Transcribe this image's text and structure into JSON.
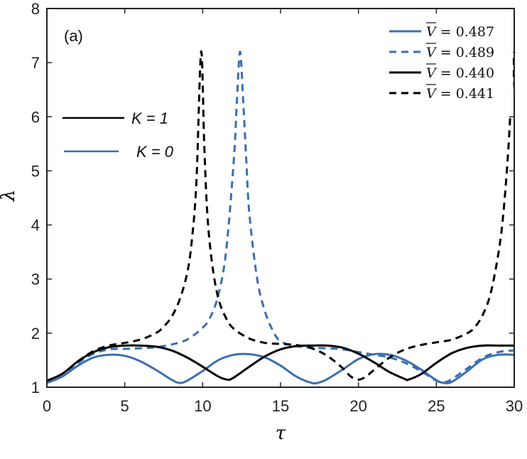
{
  "chart_data": {
    "type": "line",
    "panel_label": "(a)",
    "xlabel": "τ",
    "ylabel": "λ",
    "xlim": [
      0,
      30
    ],
    "ylim": [
      1,
      8
    ],
    "xticks": [
      "0",
      "5",
      "10",
      "15",
      "20",
      "25",
      "30"
    ],
    "yticks": [
      "1",
      "2",
      "3",
      "4",
      "5",
      "6",
      "7",
      "8"
    ],
    "legend_position": "top-right",
    "legend": [
      "V̄ = 0.487",
      "V̄ = 0.489",
      "V̄ = 0.440",
      "V̄ = 0.441"
    ],
    "legend_bar": "V",
    "legend_rest": [
      "= 0.487",
      "= 0.489",
      "= 0.440",
      "= 0.441"
    ],
    "k_legend": [
      "K = 1",
      "K = 0"
    ],
    "colors": {
      "K0": "#3a6fb0",
      "K1": "#000000"
    },
    "series": [
      {
        "name": "V̄ = 0.487",
        "K": 0,
        "style": "solid",
        "x": [
          0,
          1,
          2,
          3,
          4,
          5,
          6,
          7,
          8,
          8.5,
          9,
          10,
          11,
          12,
          13,
          14,
          15,
          16,
          17,
          17.5,
          18,
          19,
          20,
          21,
          22,
          23,
          24,
          25,
          25.5,
          26,
          27,
          28,
          29,
          30
        ],
        "y": [
          1.08,
          1.2,
          1.4,
          1.55,
          1.6,
          1.58,
          1.48,
          1.32,
          1.14,
          1.08,
          1.12,
          1.3,
          1.5,
          1.6,
          1.61,
          1.55,
          1.4,
          1.2,
          1.08,
          1.09,
          1.15,
          1.33,
          1.52,
          1.61,
          1.6,
          1.5,
          1.33,
          1.13,
          1.08,
          1.1,
          1.3,
          1.52,
          1.6,
          1.6
        ]
      },
      {
        "name": "V̄ = 0.489",
        "K": 0,
        "style": "dashed",
        "x": [
          0,
          1,
          2,
          3,
          4,
          5,
          6,
          7,
          8,
          9,
          10,
          10.5,
          11,
          11.5,
          12,
          12.2,
          12.4,
          12.6,
          12.8,
          13,
          13.5,
          14,
          14.5,
          15,
          16,
          17,
          18,
          19,
          20,
          21,
          22,
          23,
          24,
          25,
          25.5,
          26,
          27,
          28,
          29,
          30
        ],
        "y": [
          1.1,
          1.25,
          1.45,
          1.62,
          1.7,
          1.71,
          1.72,
          1.74,
          1.79,
          1.88,
          2.1,
          2.3,
          2.7,
          3.5,
          5.2,
          6.3,
          7.2,
          6.3,
          5.2,
          4.2,
          3.0,
          2.4,
          2.05,
          1.85,
          1.76,
          1.73,
          1.72,
          1.7,
          1.65,
          1.6,
          1.55,
          1.45,
          1.3,
          1.12,
          1.09,
          1.15,
          1.35,
          1.55,
          1.65,
          1.68
        ]
      },
      {
        "name": "V̄ = 0.440",
        "K": 1,
        "style": "solid",
        "x": [
          0,
          1,
          2,
          3,
          4,
          5,
          6,
          7,
          8,
          9,
          10,
          11,
          11.6,
          12,
          13,
          14,
          15,
          16,
          17,
          18,
          19,
          20,
          21,
          22,
          23,
          23.2,
          24,
          25,
          26,
          27,
          28,
          29,
          30
        ],
        "y": [
          1.12,
          1.25,
          1.48,
          1.65,
          1.74,
          1.77,
          1.77,
          1.75,
          1.68,
          1.55,
          1.38,
          1.2,
          1.14,
          1.18,
          1.38,
          1.57,
          1.7,
          1.76,
          1.77,
          1.77,
          1.73,
          1.62,
          1.46,
          1.28,
          1.15,
          1.14,
          1.24,
          1.45,
          1.63,
          1.73,
          1.77,
          1.77,
          1.77
        ]
      },
      {
        "name": "V̄ = 0.441",
        "K": 1,
        "style": "dashed",
        "x": [
          0,
          1,
          2,
          3,
          4,
          5,
          6,
          7,
          7.5,
          8,
          8.5,
          9,
          9.3,
          9.6,
          9.9,
          10.1,
          10.3,
          10.6,
          11,
          11.5,
          12,
          13,
          14,
          15,
          16,
          17,
          18,
          19,
          19.5,
          20,
          20.5,
          21,
          22,
          23,
          24,
          25,
          26,
          27,
          27.5,
          28,
          28.5,
          29,
          29.3,
          29.6,
          29.8,
          30
        ],
        "y": [
          1.12,
          1.25,
          1.48,
          1.67,
          1.77,
          1.82,
          1.88,
          2.0,
          2.12,
          2.3,
          2.6,
          3.1,
          3.7,
          4.8,
          7.2,
          5.5,
          4.2,
          3.3,
          2.65,
          2.28,
          2.08,
          1.9,
          1.82,
          1.8,
          1.78,
          1.72,
          1.58,
          1.35,
          1.2,
          1.14,
          1.2,
          1.32,
          1.55,
          1.7,
          1.78,
          1.83,
          1.88,
          2.0,
          2.12,
          2.35,
          2.75,
          3.5,
          4.2,
          5.3,
          6.3,
          7.2
        ]
      }
    ]
  }
}
